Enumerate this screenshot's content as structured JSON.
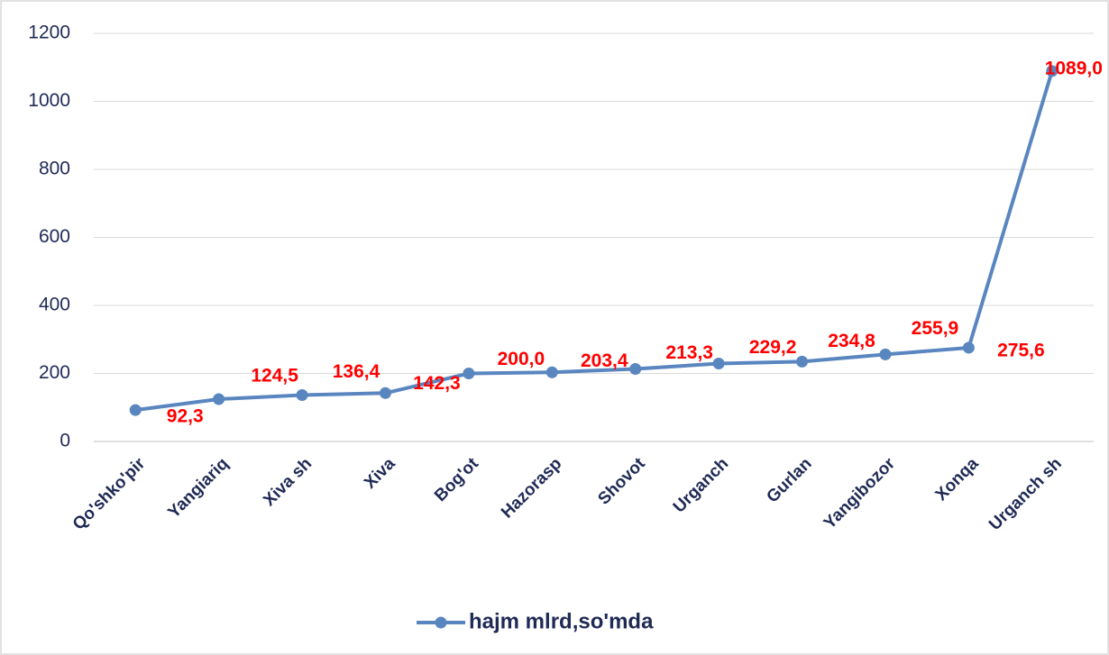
{
  "chart_data": {
    "type": "line",
    "categories": [
      "Qo'shko'pir",
      "Yangiariq",
      "Xiva sh",
      "Xiva",
      "Bog'ot",
      "Hazorasp",
      "Shovot",
      "Urganch",
      "Gurlan",
      "Yangibozor",
      "Xonqa",
      "Urganch sh"
    ],
    "series": [
      {
        "name": "hajm mlrd,so'mda",
        "color": "#5a86c0",
        "values": [
          92.3,
          124.5,
          136.4,
          142.3,
          200.0,
          203.4,
          213.3,
          229.2,
          234.8,
          255.9,
          275.6,
          1089.0
        ],
        "value_labels": [
          "92,3",
          "124,5",
          "136,4",
          "142,3",
          "200,0",
          "203,4",
          "213,3",
          "229,2",
          "234,8",
          "255,9",
          "275,6",
          "1089,0"
        ]
      }
    ],
    "ylim": [
      0,
      1200
    ],
    "yticks": [
      0,
      200,
      400,
      600,
      800,
      1000,
      1200
    ],
    "grid": true,
    "legend": "bottom"
  }
}
